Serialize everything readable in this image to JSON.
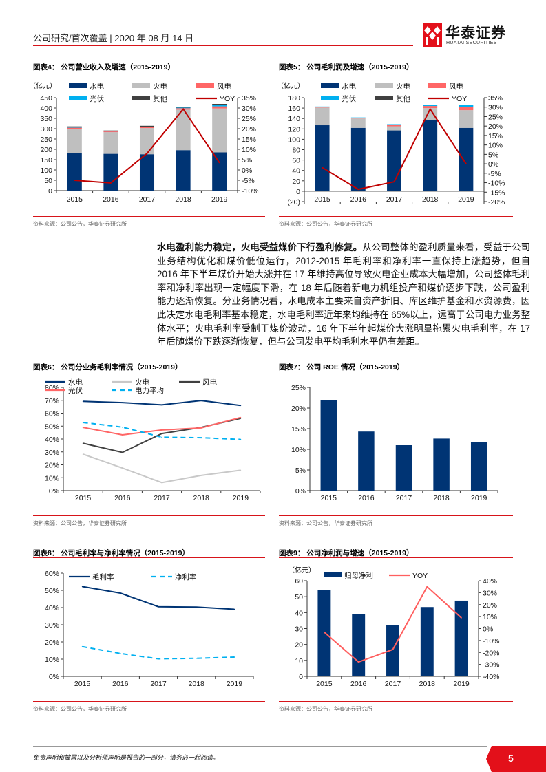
{
  "header": {
    "section": "公司研究/首次覆盖",
    "date": "| 2020 年 08 月 14 日",
    "logo_cn": "华泰证券",
    "logo_en": "HUATAI SECURITIES"
  },
  "source_text": "资料来源：公司公告，华泰证券研究所",
  "paragraph": {
    "lead": "水电盈利能力稳定，火电受益煤价下行盈利修复。",
    "body": "从公司整体的盈利质量来看，受益于公司业务结构优化和煤价低位运行，2012-2015 年毛利率和净利率一直保持上涨趋势，但自 2016 年下半年煤价开始大涨并在 17 年维持高位导致火电企业成本大幅增加，公司整体毛利率和净利率出现一定幅度下滑，在 18 年后随着新电力机组投产和煤价逐步下跌，公司盈利能力逐渐恢复。分业务情况看，水电成本主要来自资产折旧、库区维护基金和水资源费，因此决定水电毛利率基本稳定，水电毛利率近年来均维持在 65%以上，远高于公司电力业务整体水平；火电毛利率受制于煤价波动，16 年下半年起煤价大涨明显拖累火电毛利率，在 17 年后随煤价下跌逐渐恢复，但与公司发电平均毛利水平仍有差距。"
  },
  "footer": {
    "disclaimer": "免责声明和披露以及分析师声明是报告的一部分，请务必一起阅读。",
    "page": "5"
  },
  "colors": {
    "accent": "#d7141a",
    "navy": "#003474"
  },
  "chart_data": [
    {
      "id": "fig4",
      "type": "bar",
      "title": "图表4：  公司营业收入及增速（2015-2019）",
      "unit": "（亿元）",
      "categories": [
        "2015",
        "2016",
        "2017",
        "2018",
        "2019"
      ],
      "stacks": [
        {
          "name": "水电",
          "color": "#003474",
          "values": [
            182,
            178,
            176,
            196,
            185
          ]
        },
        {
          "name": "火电",
          "color": "#bfbfbf",
          "values": [
            118,
            105,
            127,
            196,
            213
          ]
        },
        {
          "name": "风电",
          "color": "#ff6666",
          "values": [
            5,
            4,
            4,
            7,
            10
          ]
        },
        {
          "name": "光伏",
          "color": "#00b0f0",
          "values": [
            1,
            1,
            2,
            3,
            7
          ]
        },
        {
          "name": "其他",
          "color": "#404040",
          "values": [
            5,
            3,
            5,
            4,
            5
          ]
        }
      ],
      "lines": [
        {
          "name": "YOY",
          "color": "#c00000",
          "axis": "right",
          "values": [
            -5,
            -6.3,
            8,
            29.5,
            3.5
          ]
        }
      ],
      "ylim": [
        0,
        450
      ],
      "ystep": 50,
      "yfmt": "num",
      "y2lim": [
        -10,
        35
      ],
      "y2step": 5
    },
    {
      "id": "fig5",
      "type": "bar",
      "title": "图表5：  公司毛利润及增速（2015-2019）",
      "unit": "（亿元）",
      "categories": [
        "2015",
        "2016",
        "2017",
        "2018",
        "2019"
      ],
      "stacks": [
        {
          "name": "水电",
          "color": "#003474",
          "values": [
            127,
            122,
            117,
            137,
            122
          ]
        },
        {
          "name": "火电",
          "color": "#bfbfbf",
          "values": [
            34,
            18,
            8,
            23,
            34
          ]
        },
        {
          "name": "风电",
          "color": "#ff6666",
          "values": [
            1.5,
            1,
            3,
            4,
            6
          ]
        },
        {
          "name": "光伏",
          "color": "#00b0f0",
          "values": [
            0.5,
            1,
            1,
            2,
            4
          ]
        },
        {
          "name": "其他",
          "color": "#404040",
          "values": [
            0,
            0,
            0,
            0,
            0
          ]
        }
      ],
      "lines": [
        {
          "name": "YOY",
          "color": "#c00000",
          "axis": "right",
          "values": [
            -2,
            -13.5,
            -9.5,
            29,
            0
          ]
        }
      ],
      "ylim": [
        -20,
        180
      ],
      "ystep": 20,
      "yfmt": "num",
      "y2lim": [
        -20,
        35
      ],
      "y2step": 5
    },
    {
      "id": "fig6",
      "type": "line",
      "title": "图表6：  公司分业务毛利率情况（2015-2019）",
      "categories": [
        "2015",
        "2016",
        "2017",
        "2018",
        "2019"
      ],
      "lines": [
        {
          "name": "水电",
          "color": "#003474",
          "values": [
            69.2,
            68.2,
            66.5,
            69.8,
            66
          ]
        },
        {
          "name": "火电",
          "color": "#c8c8c8",
          "values": [
            28.2,
            17.5,
            6.2,
            11.8,
            15.8
          ]
        },
        {
          "name": "风电",
          "color": "#404040",
          "values": [
            36.7,
            29.6,
            44.2,
            49,
            56
          ]
        },
        {
          "name": "光伏",
          "color": "#ff6666",
          "values": [
            49,
            43.2,
            47,
            48.6,
            56.7
          ]
        },
        {
          "name": "电力平均",
          "color": "#00b0f0",
          "dashed": true,
          "values": [
            52.8,
            49.2,
            41.4,
            41,
            39.7
          ]
        }
      ],
      "ylim": [
        0,
        80
      ],
      "ystep": 10,
      "yfmt": "pct"
    },
    {
      "id": "fig7",
      "type": "bar",
      "title": "图表7：  公司 ROE 情况（2015-2019）",
      "categories": [
        "2015",
        "2016",
        "2017",
        "2018",
        "2019"
      ],
      "stacks": [
        {
          "name": "ROE",
          "color": "#003474",
          "values": [
            22,
            14.3,
            11,
            12.6,
            11.8
          ]
        }
      ],
      "ylim": [
        0,
        25
      ],
      "ystep": 5,
      "yfmt": "pct"
    },
    {
      "id": "fig8",
      "type": "line",
      "title": "图表8：  公司毛利率与净利率情况（2015-2019）",
      "categories": [
        "2015",
        "2016",
        "2017",
        "2018",
        "2019"
      ],
      "lines": [
        {
          "name": "毛利率",
          "color": "#003474",
          "values": [
            52.2,
            48.4,
            40.5,
            40.3,
            39
          ]
        },
        {
          "name": "净利率",
          "color": "#00b0f0",
          "dashed": true,
          "values": [
            17.3,
            13.3,
            10.2,
            10.5,
            11.2
          ]
        }
      ],
      "ylim": [
        0,
        60
      ],
      "ystep": 10,
      "yfmt": "pct"
    },
    {
      "id": "fig9",
      "type": "bar",
      "title": "图表9：  公司净利润与增速（2015-2019）",
      "unit": "（亿元）",
      "categories": [
        "2015",
        "2016",
        "2017",
        "2018",
        "2019"
      ],
      "stacks": [
        {
          "name": "归母净利",
          "color": "#003474",
          "values": [
            54.2,
            39,
            32.2,
            43.5,
            47.5
          ]
        }
      ],
      "lines": [
        {
          "name": "YOY",
          "color": "#ff5f5f",
          "axis": "right",
          "values": [
            -3,
            -28,
            -17.5,
            35,
            9
          ]
        }
      ],
      "ylim": [
        0,
        60
      ],
      "ystep": 10,
      "yfmt": "num",
      "y2lim": [
        -40,
        40
      ],
      "y2step": 10
    }
  ]
}
